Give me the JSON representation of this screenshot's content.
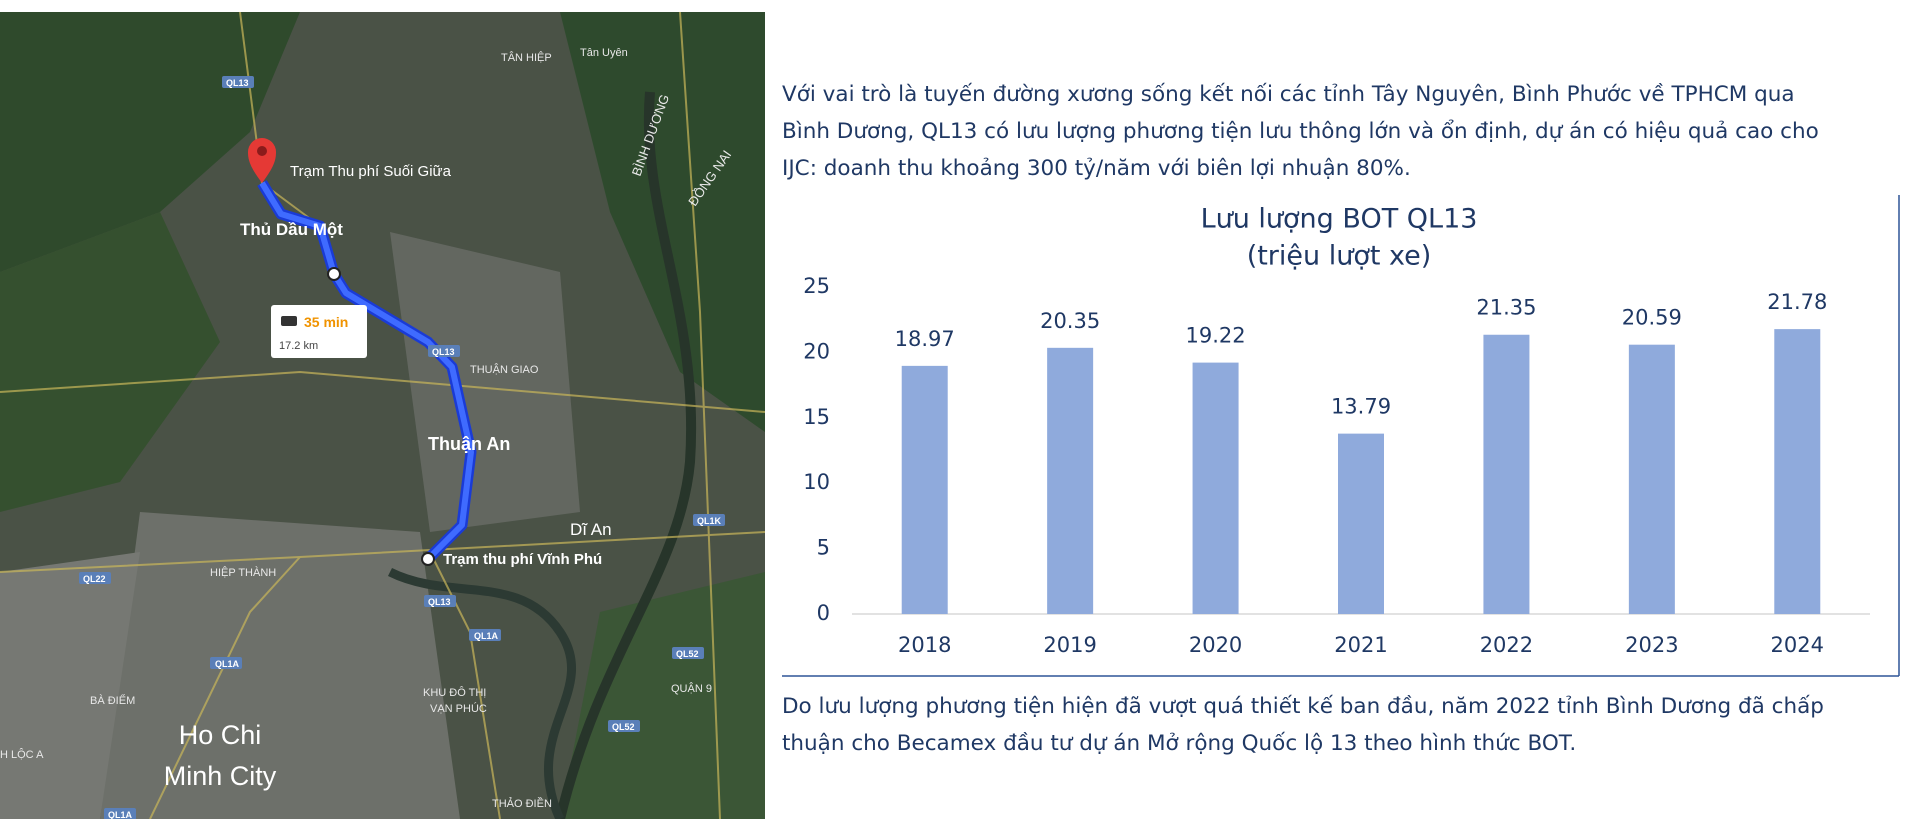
{
  "map": {
    "labels": [
      "TÂN HIỆP",
      "Tân Uyên",
      "QL13",
      "Trạm Thu phí Suối Giữa",
      "Thủ Dầu Một",
      "35 min",
      "17.2 km",
      "QL13",
      "THUẬN GIAO",
      "Thuận An",
      "Dĩ An",
      "Trạm thu phí Vĩnh Phú",
      "BÌNH DƯƠNG",
      "ĐỒNG NAI",
      "QL1K",
      "QL22",
      "HIỆP THÀNH",
      "QL13",
      "QL1A",
      "QL1A",
      "QL52",
      "BÀ ĐIỂM",
      "KHU ĐÔ THỊ",
      "VẠN PHÚC",
      "QUẬN 9",
      "QL52",
      "Ho Chi",
      "Minh City",
      "H LỘC A",
      "THẢO ĐIỀN",
      "QL1A"
    ]
  },
  "paragraphs": [
    [
      "Với vai trò là tuyến đường xương sống kết nối các tỉnh Tây Nguyên, Bình Phước về TPHCM qua",
      "Bình Dương, QL13 có lưu lượng phương tiện lưu thông lớn và ổn định, dự án có hiệu quả cao cho",
      "IJC: doanh thu khoảng 300 tỷ/năm với biên lợi nhuận 80%."
    ],
    [
      "Do lưu lượng phương tiện hiện đã vượt quá thiết kế ban đầu, năm 2022 tỉnh Bình Dương đã chấp",
      "thuận cho Becamex đầu tư dự án Mở rộng Quốc lộ 13 theo hình thức BOT."
    ]
  ],
  "chart_data": {
    "type": "bar",
    "title": "Lưu lượng BOT QL13",
    "subtitle": "(triệu lượt xe)",
    "categories": [
      "2018",
      "2019",
      "2020",
      "2021",
      "2022",
      "2023",
      "2024"
    ],
    "values": [
      18.97,
      20.35,
      19.22,
      13.79,
      21.35,
      20.59,
      21.78
    ],
    "color": "#8faadc",
    "ylim": [
      0,
      25
    ],
    "yticks": [
      0,
      5,
      10,
      15,
      20,
      25
    ],
    "grid": false
  }
}
